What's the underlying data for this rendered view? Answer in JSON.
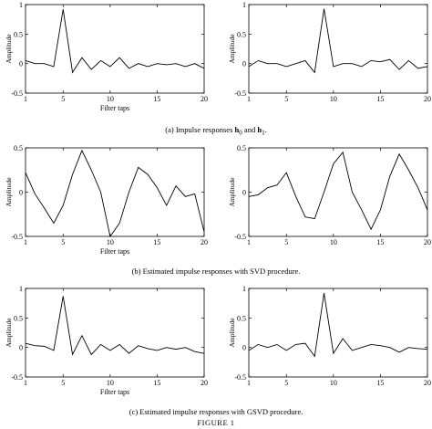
{
  "figure": {
    "title": "FIGURE 1"
  },
  "captions": {
    "a": {
      "prefix": "(a) Impulse responses ",
      "h0": "h",
      "h0_sub": "0",
      "and": " and ",
      "h1": "h",
      "h1_sub": "1",
      "suffix": "."
    },
    "b": "(b) Estimated impulse responses with SVD procedure.",
    "c": "(c) Estimated impulse responses with GSVD procedure."
  },
  "chart_data": [
    {
      "id": "a-left",
      "type": "line",
      "xlabel": "Filter taps",
      "ylabel": "Amplitude",
      "xlim": [
        1,
        20
      ],
      "ylim": [
        -0.5,
        1
      ],
      "xticks": [
        "1",
        "5",
        "10",
        "15",
        "20"
      ],
      "yticks": [
        "-0.5",
        "0",
        "0.5",
        "1"
      ],
      "x": [
        1,
        2,
        3,
        4,
        5,
        6,
        7,
        8,
        9,
        10,
        11,
        12,
        13,
        14,
        15,
        16,
        17,
        18,
        19,
        20
      ],
      "series": [
        {
          "values": [
            0.05,
            0.0,
            0.0,
            -0.05,
            0.92,
            -0.15,
            0.1,
            -0.1,
            0.05,
            -0.05,
            0.1,
            -0.08,
            0.0,
            -0.05,
            0.0,
            -0.02,
            0.0,
            -0.05,
            0.0,
            -0.08
          ]
        }
      ]
    },
    {
      "id": "a-right",
      "type": "line",
      "xlabel": "",
      "ylabel": "Amplitude",
      "xlim": [
        1,
        20
      ],
      "ylim": [
        -0.5,
        1
      ],
      "xticks": [
        "1",
        "5",
        "10",
        "15",
        "20"
      ],
      "yticks": [
        "-0.5",
        "0",
        "0.5",
        "1"
      ],
      "x": [
        1,
        2,
        3,
        4,
        5,
        6,
        7,
        8,
        9,
        10,
        11,
        12,
        13,
        14,
        15,
        16,
        17,
        18,
        19,
        20
      ],
      "series": [
        {
          "values": [
            -0.05,
            0.05,
            0.0,
            0.0,
            -0.05,
            0.0,
            0.05,
            -0.15,
            0.93,
            -0.05,
            0.0,
            0.0,
            -0.05,
            0.05,
            0.03,
            0.07,
            -0.1,
            0.05,
            -0.08,
            -0.05
          ]
        }
      ]
    },
    {
      "id": "b-left",
      "type": "line",
      "xlabel": "Filter taps",
      "ylabel": "Amplitude",
      "xlim": [
        1,
        20
      ],
      "ylim": [
        -0.5,
        0.5
      ],
      "xticks": [
        "1",
        "5",
        "10",
        "15",
        "20"
      ],
      "yticks": [
        "-0.5",
        "0",
        "0.5"
      ],
      "x": [
        1,
        2,
        3,
        4,
        5,
        6,
        7,
        8,
        9,
        10,
        11,
        12,
        13,
        14,
        15,
        16,
        17,
        18,
        19,
        20
      ],
      "series": [
        {
          "values": [
            0.22,
            -0.02,
            -0.18,
            -0.35,
            -0.15,
            0.2,
            0.47,
            0.25,
            0.0,
            -0.5,
            -0.35,
            0.0,
            0.28,
            0.2,
            0.05,
            -0.15,
            0.07,
            -0.05,
            -0.02,
            -0.45
          ]
        }
      ]
    },
    {
      "id": "b-right",
      "type": "line",
      "xlabel": "",
      "ylabel": "Amplitude",
      "xlim": [
        1,
        20
      ],
      "ylim": [
        -0.5,
        0.5
      ],
      "xticks": [
        "1",
        "5",
        "10",
        "15",
        "20"
      ],
      "yticks": [
        "-0.5",
        "0",
        "0.5"
      ],
      "x": [
        1,
        2,
        3,
        4,
        5,
        6,
        7,
        8,
        9,
        10,
        11,
        12,
        13,
        14,
        15,
        16,
        17,
        18,
        19,
        20
      ],
      "series": [
        {
          "values": [
            -0.05,
            -0.03,
            0.05,
            0.08,
            0.22,
            -0.05,
            -0.28,
            -0.3,
            0.0,
            0.32,
            0.45,
            0.0,
            -0.2,
            -0.42,
            -0.2,
            0.18,
            0.43,
            0.25,
            0.05,
            -0.2
          ]
        }
      ]
    },
    {
      "id": "c-left",
      "type": "line",
      "xlabel": "Filter taps",
      "ylabel": "Amplitude",
      "xlim": [
        1,
        20
      ],
      "ylim": [
        -0.5,
        1
      ],
      "xticks": [
        "1",
        "5",
        "10",
        "15",
        "20"
      ],
      "yticks": [
        "-0.5",
        "0",
        "0.5",
        "1"
      ],
      "x": [
        1,
        2,
        3,
        4,
        5,
        6,
        7,
        8,
        9,
        10,
        11,
        12,
        13,
        14,
        15,
        16,
        17,
        18,
        19,
        20
      ],
      "series": [
        {
          "values": [
            0.07,
            0.03,
            0.02,
            -0.05,
            0.87,
            -0.12,
            0.2,
            -0.12,
            0.05,
            -0.05,
            0.05,
            -0.1,
            0.03,
            -0.02,
            -0.05,
            0.0,
            -0.03,
            0.0,
            -0.07,
            -0.1
          ]
        }
      ]
    },
    {
      "id": "c-right",
      "type": "line",
      "xlabel": "",
      "ylabel": "Amplitude",
      "xlim": [
        1,
        20
      ],
      "ylim": [
        -0.5,
        1
      ],
      "xticks": [
        "1",
        "5",
        "10",
        "15",
        "20"
      ],
      "yticks": [
        "-0.5",
        "0",
        "0.5",
        "1"
      ],
      "x": [
        1,
        2,
        3,
        4,
        5,
        6,
        7,
        8,
        9,
        10,
        11,
        12,
        13,
        14,
        15,
        16,
        17,
        18,
        19,
        20
      ],
      "series": [
        {
          "values": [
            -0.05,
            0.05,
            0.0,
            0.05,
            -0.05,
            0.05,
            0.07,
            -0.15,
            0.92,
            -0.1,
            0.15,
            -0.05,
            0.0,
            0.05,
            0.03,
            0.0,
            -0.08,
            0.0,
            -0.02,
            -0.03
          ]
        }
      ]
    }
  ]
}
